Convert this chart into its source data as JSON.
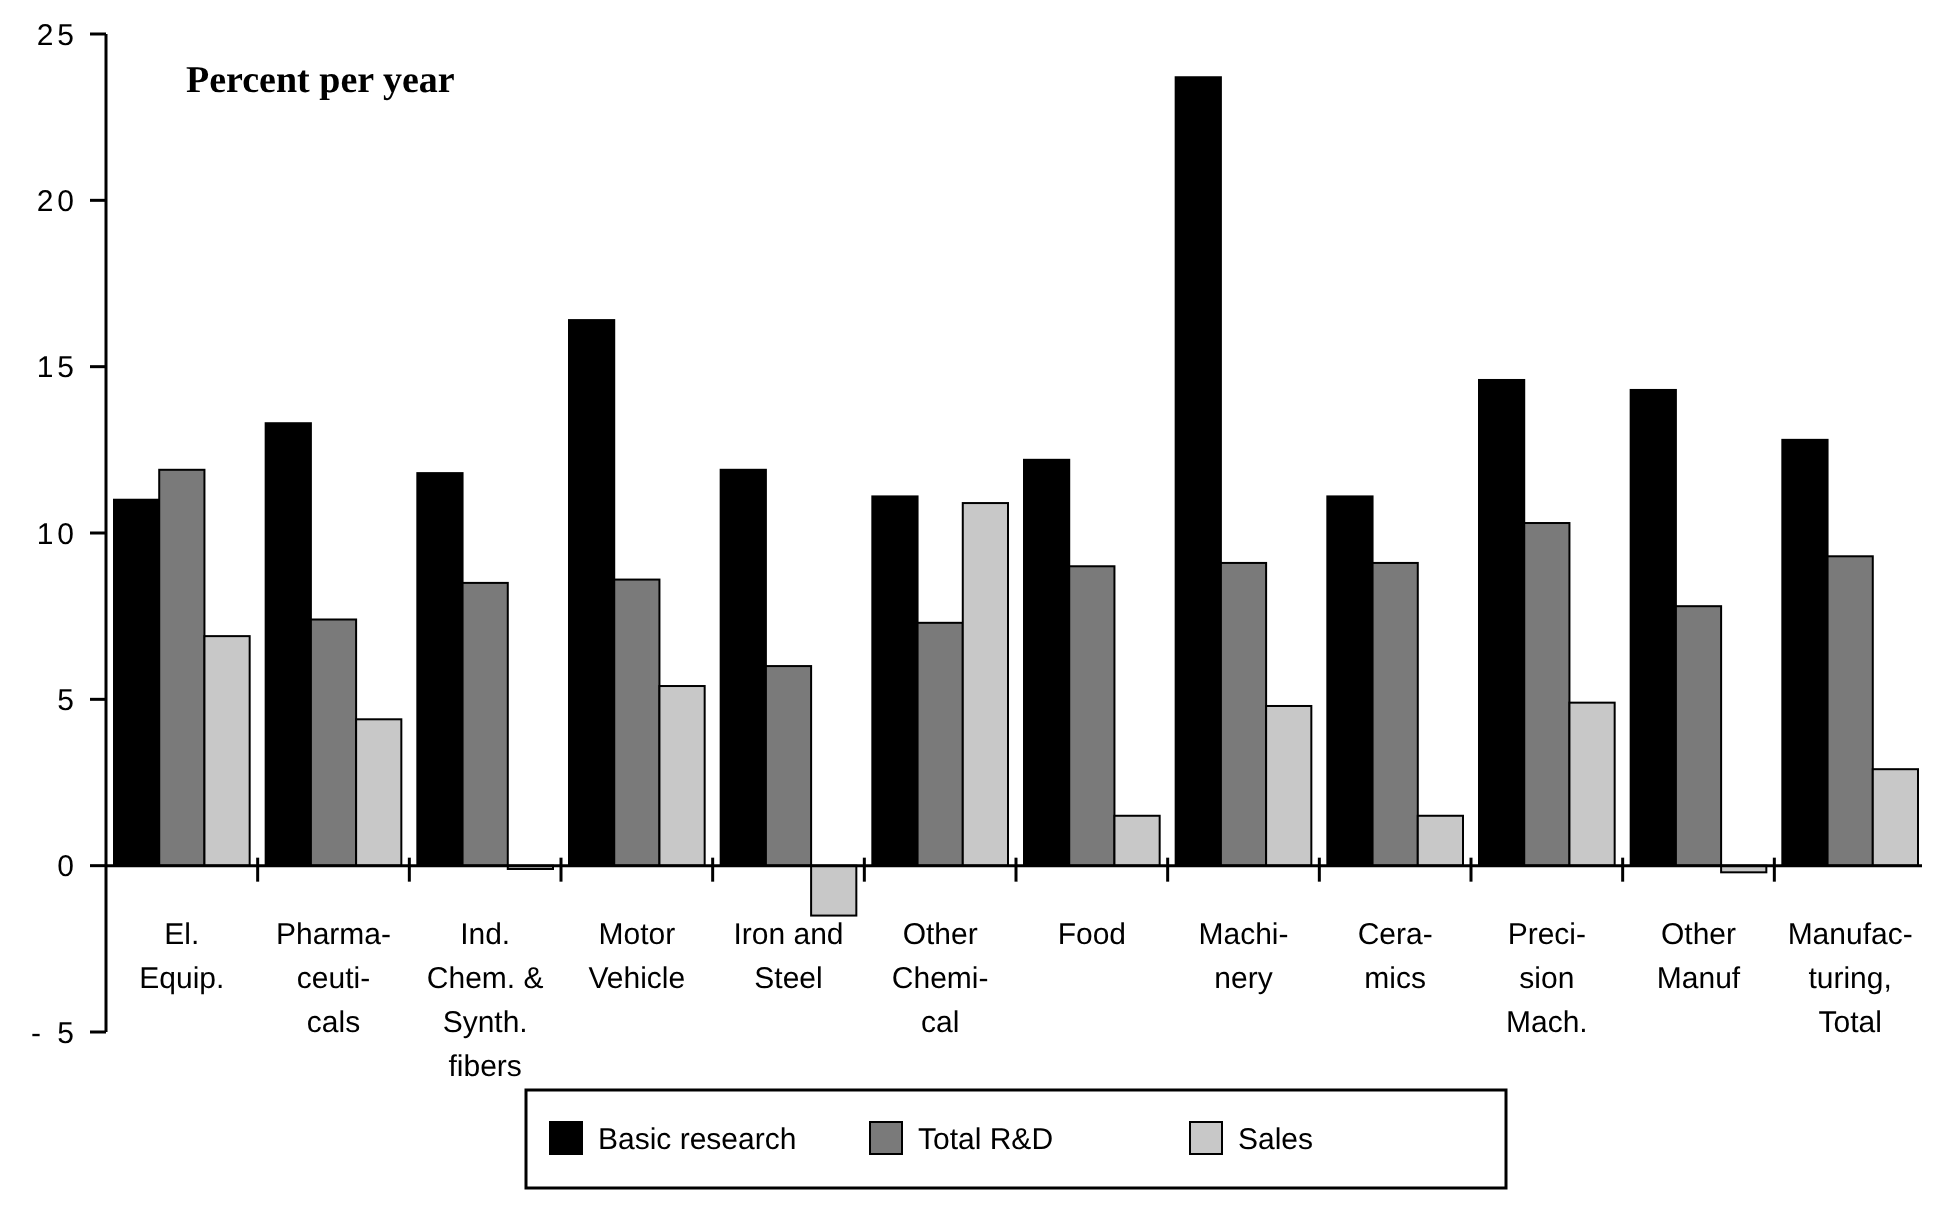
{
  "chart_data": {
    "type": "bar",
    "ylabel": "Percent per year",
    "categories": [
      "El.\nEquip.",
      "Pharma-\nceuti-\ncals",
      "Ind.\nChem. &\nSynth.\nfibers",
      "Motor\nVehicle",
      "Iron and\nSteel",
      "Other\nChemi-\ncal",
      "Food",
      "Machi-\nnery",
      "Cera-\nmics",
      "Preci-\nsion\nMach.",
      "Other\nManuf",
      "Manufac-\nturing,\nTotal"
    ],
    "series": [
      {
        "name": "Basic research",
        "color": "#000000",
        "values": [
          11.0,
          13.3,
          11.8,
          16.4,
          11.9,
          11.1,
          12.2,
          23.7,
          11.1,
          14.6,
          14.3,
          12.8
        ]
      },
      {
        "name": "Total R&D",
        "color": "#7a7a7a",
        "values": [
          11.9,
          7.4,
          8.5,
          8.6,
          6.0,
          7.3,
          9.0,
          9.1,
          9.1,
          10.3,
          7.8,
          9.3
        ]
      },
      {
        "name": "Sales",
        "color": "#c8c8c8",
        "values": [
          6.9,
          4.4,
          -0.1,
          5.4,
          -1.5,
          10.9,
          1.5,
          4.8,
          1.5,
          4.9,
          -0.2,
          2.9
        ]
      }
    ],
    "ylim": [
      -5,
      25
    ],
    "yticks": [
      {
        "value": -5,
        "label": "- 5"
      },
      0,
      5,
      10,
      15,
      20,
      25
    ],
    "grid": false,
    "legend": "bottom"
  }
}
